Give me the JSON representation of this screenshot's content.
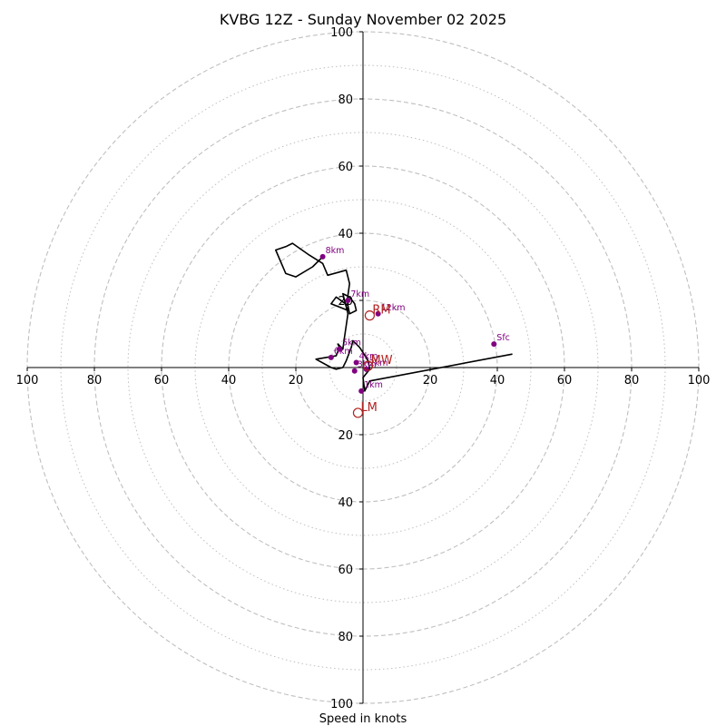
{
  "chart_data": {
    "type": "hodograph",
    "title": "KVBG 12Z - Sunday November 02 2025",
    "xlabel": "Speed in knots",
    "axis_range": [
      -100,
      100
    ],
    "ring_major": [
      20,
      40,
      60,
      80,
      100
    ],
    "ring_minor": [
      10,
      30,
      50,
      70,
      90
    ],
    "tick_values": [
      100,
      80,
      60,
      40,
      20
    ],
    "colors": {
      "trace": "#000000",
      "height_marker": "#800080",
      "motion": "#b22222",
      "ring": "#bfbfbf",
      "axis": "#000000"
    },
    "trace": [
      [
        44.5,
        4.0
      ],
      [
        2.0,
        -4.0
      ],
      [
        0.5,
        -7.0
      ],
      [
        0.0,
        -3.0
      ],
      [
        2.0,
        -0.5
      ],
      [
        1.5,
        2.0
      ],
      [
        0.0,
        4.5
      ],
      [
        -1.0,
        6.0
      ],
      [
        -3.0,
        8.0
      ],
      [
        -3.5,
        6.0
      ],
      [
        -5.0,
        2.0
      ],
      [
        -6.0,
        0.0
      ],
      [
        -8.0,
        -0.5
      ],
      [
        -9.5,
        0.0
      ],
      [
        -14.0,
        2.5
      ],
      [
        -8.0,
        3.5
      ],
      [
        -7.0,
        6.0
      ],
      [
        -7.5,
        7.0
      ],
      [
        -6.0,
        5.5
      ],
      [
        -5.5,
        9.0
      ],
      [
        -4.5,
        16.0
      ],
      [
        -6.0,
        22.0
      ],
      [
        -4.0,
        21.0
      ],
      [
        -2.5,
        19.0
      ],
      [
        -2.0,
        17.0
      ],
      [
        -4.0,
        16.0
      ],
      [
        -4.5,
        18.5
      ],
      [
        -8.0,
        21.0
      ],
      [
        -9.5,
        19.0
      ],
      [
        -4.5,
        17.0
      ],
      [
        -4.5,
        21.5
      ],
      [
        -4.0,
        25.0
      ],
      [
        -5.0,
        29.0
      ],
      [
        -10.5,
        27.5
      ],
      [
        -12.0,
        31.0
      ],
      [
        -16.0,
        33.5
      ],
      [
        -21.0,
        37.0
      ],
      [
        -23.0,
        36.0
      ],
      [
        -26.0,
        35.0
      ],
      [
        -23.0,
        28.0
      ],
      [
        -20.0,
        27.0
      ],
      [
        -15.0,
        30.0
      ],
      [
        -12.0,
        33.0
      ]
    ],
    "height_markers": [
      {
        "label": "Sfc",
        "u": 39.0,
        "v": 7.0
      },
      {
        "label": "1km",
        "u": -0.5,
        "v": -7.0
      },
      {
        "label": "2km",
        "u": 1.0,
        "v": -0.5
      },
      {
        "label": "3km",
        "u": -2.5,
        "v": -1.0
      },
      {
        "label": "4km",
        "u": -2.0,
        "v": 1.5
      },
      {
        "label": "5km",
        "u": -7.0,
        "v": 5.5
      },
      {
        "label": "6km",
        "u": -9.5,
        "v": 3.0
      },
      {
        "label": "7km",
        "u": -4.5,
        "v": 20.0
      },
      {
        "label": "8km",
        "u": -12.0,
        "v": 33.0
      },
      {
        "label": "12km",
        "u": 4.5,
        "v": 16.0
      }
    ],
    "motion_markers": [
      {
        "label": "RM",
        "u": 2.0,
        "v": 15.5
      },
      {
        "label": "MW",
        "u": 1.5,
        "v": 0.5
      },
      {
        "label": "LM",
        "u": -1.5,
        "v": -13.5
      }
    ]
  }
}
